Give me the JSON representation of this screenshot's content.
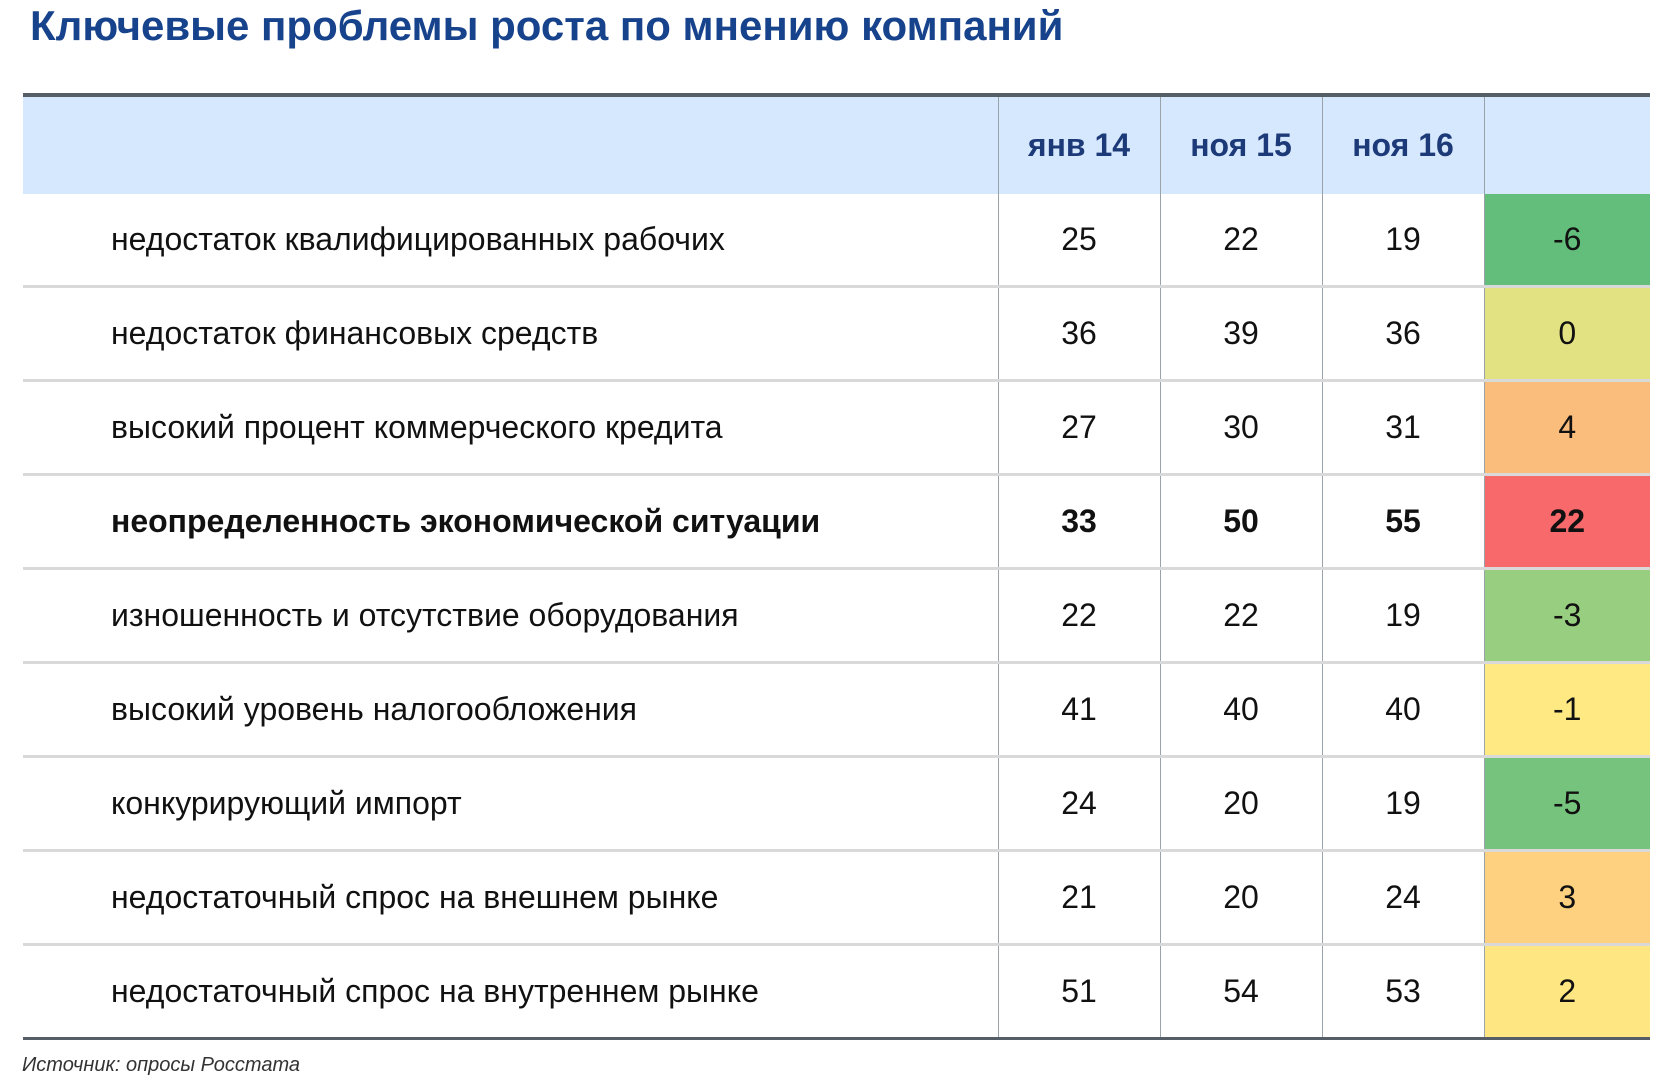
{
  "title": "Ключевые проблемы роста по мнению компаний",
  "source": "Источник: опросы Росстата",
  "chart_data": {
    "type": "table",
    "columns": [
      "",
      "янв 14",
      "ноя 15",
      "ноя 16",
      ""
    ],
    "rows": [
      {
        "label": "недостаток квалифицированных рабочих",
        "values": [
          "25",
          "22",
          "19"
        ],
        "delta": "-6",
        "color": "#63be7b",
        "bold": false
      },
      {
        "label": "недостаток финансовых средств",
        "values": [
          "36",
          "39",
          "36"
        ],
        "delta": "0",
        "color": "#e3e282",
        "bold": false
      },
      {
        "label": "высокий процент коммерческого кредита",
        "values": [
          "27",
          "30",
          "31"
        ],
        "delta": "4",
        "color": "#fbbd7c",
        "bold": false
      },
      {
        "label": "неопределенность экономической ситуации",
        "values": [
          "33",
          "50",
          "55"
        ],
        "delta": "22",
        "color": "#f8696b",
        "bold": true
      },
      {
        "label": "изношенность и отсутствие оборудования",
        "values": [
          "22",
          "22",
          "19"
        ],
        "delta": "-3",
        "color": "#98ce7f",
        "bold": false
      },
      {
        "label": "высокий уровень налогообложения",
        "values": [
          "41",
          "40",
          "40"
        ],
        "delta": "-1",
        "color": "#fee983",
        "bold": false
      },
      {
        "label": "конкурирующий импорт",
        "values": [
          "24",
          "20",
          "19"
        ],
        "delta": "-5",
        "color": "#75c37c",
        "bold": false
      },
      {
        "label": "недостаточный спрос на внешнем рынке",
        "values": [
          "21",
          "20",
          "24"
        ],
        "delta": "3",
        "color": "#fdd17f",
        "bold": false
      },
      {
        "label": "недостаточный спрос на внутреннем рынке",
        "values": [
          "51",
          "54",
          "53"
        ],
        "delta": "2",
        "color": "#fee683",
        "bold": false
      }
    ]
  }
}
